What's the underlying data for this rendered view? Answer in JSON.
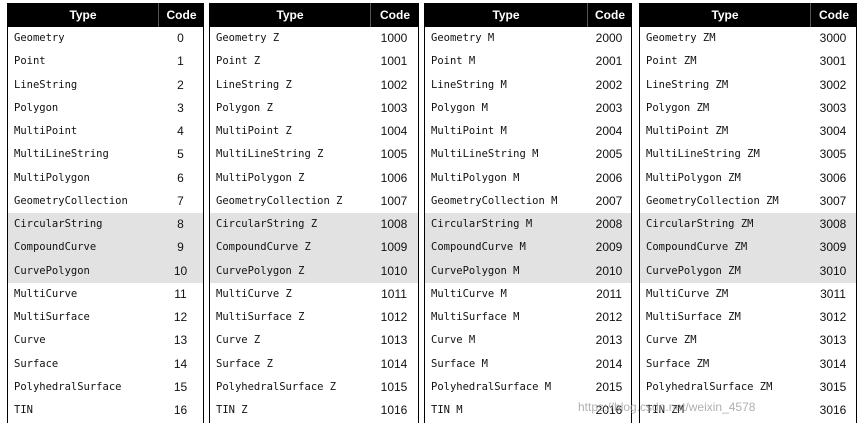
{
  "headers": {
    "type": "Type",
    "code": "Code"
  },
  "tables": [
    {
      "rows": [
        {
          "type": "Geometry",
          "code": "0"
        },
        {
          "type": "Point",
          "code": "1"
        },
        {
          "type": "LineString",
          "code": "2"
        },
        {
          "type": "Polygon",
          "code": "3"
        },
        {
          "type": "MultiPoint",
          "code": "4"
        },
        {
          "type": "MultiLineString",
          "code": "5"
        },
        {
          "type": "MultiPolygon",
          "code": "6"
        },
        {
          "type": "GeometryCollection",
          "code": "7"
        },
        {
          "type": "CircularString",
          "code": "8"
        },
        {
          "type": "CompoundCurve",
          "code": "9"
        },
        {
          "type": "CurvePolygon",
          "code": "10"
        },
        {
          "type": "MultiCurve",
          "code": "11"
        },
        {
          "type": "MultiSurface",
          "code": "12"
        },
        {
          "type": "Curve",
          "code": "13"
        },
        {
          "type": "Surface",
          "code": "14"
        },
        {
          "type": "PolyhedralSurface",
          "code": "15"
        },
        {
          "type": "TIN",
          "code": "16"
        }
      ]
    },
    {
      "rows": [
        {
          "type": "Geometry Z",
          "code": "1000"
        },
        {
          "type": "Point Z",
          "code": "1001"
        },
        {
          "type": "LineString Z",
          "code": "1002"
        },
        {
          "type": "Polygon Z",
          "code": "1003"
        },
        {
          "type": "MultiPoint Z",
          "code": "1004"
        },
        {
          "type": "MultiLineString Z",
          "code": "1005"
        },
        {
          "type": "MultiPolygon Z",
          "code": "1006"
        },
        {
          "type": "GeometryCollection Z",
          "code": "1007"
        },
        {
          "type": "CircularString Z",
          "code": "1008"
        },
        {
          "type": "CompoundCurve Z",
          "code": "1009"
        },
        {
          "type": "CurvePolygon Z",
          "code": "1010"
        },
        {
          "type": "MultiCurve Z",
          "code": "1011"
        },
        {
          "type": "MultiSurface Z",
          "code": "1012"
        },
        {
          "type": "Curve Z",
          "code": "1013"
        },
        {
          "type": "Surface Z",
          "code": "1014"
        },
        {
          "type": "PolyhedralSurface Z",
          "code": "1015"
        },
        {
          "type": "TIN Z",
          "code": "1016"
        }
      ]
    },
    {
      "rows": [
        {
          "type": "Geometry M",
          "code": "2000"
        },
        {
          "type": "Point M",
          "code": "2001"
        },
        {
          "type": "LineString M",
          "code": "2002"
        },
        {
          "type": "Polygon M",
          "code": "2003"
        },
        {
          "type": "MultiPoint M",
          "code": "2004"
        },
        {
          "type": "MultiLineString M",
          "code": "2005"
        },
        {
          "type": "MultiPolygon M",
          "code": "2006"
        },
        {
          "type": "GeometryCollection M",
          "code": "2007"
        },
        {
          "type": "CircularString M",
          "code": "2008"
        },
        {
          "type": "CompoundCurve M",
          "code": "2009"
        },
        {
          "type": "CurvePolygon M",
          "code": "2010"
        },
        {
          "type": "MultiCurve M",
          "code": "2011"
        },
        {
          "type": "MultiSurface M",
          "code": "2012"
        },
        {
          "type": "Curve M",
          "code": "2013"
        },
        {
          "type": "Surface M",
          "code": "2014"
        },
        {
          "type": "PolyhedralSurface M",
          "code": "2015"
        },
        {
          "type": "TIN M",
          "code": "2016"
        }
      ]
    },
    {
      "rows": [
        {
          "type": "Geometry ZM",
          "code": "3000"
        },
        {
          "type": "Point ZM",
          "code": "3001"
        },
        {
          "type": "LineString ZM",
          "code": "3002"
        },
        {
          "type": "Polygon ZM",
          "code": "3003"
        },
        {
          "type": "MultiPoint ZM",
          "code": "3004"
        },
        {
          "type": "MultiLineString ZM",
          "code": "3005"
        },
        {
          "type": "MultiPolygon ZM",
          "code": "3006"
        },
        {
          "type": "GeometryCollection ZM",
          "code": "3007"
        },
        {
          "type": "CircularString ZM",
          "code": "3008"
        },
        {
          "type": "CompoundCurve ZM",
          "code": "3009"
        },
        {
          "type": "CurvePolygon ZM",
          "code": "3010"
        },
        {
          "type": "MultiCurve ZM",
          "code": "3011"
        },
        {
          "type": "MultiSurface ZM",
          "code": "3012"
        },
        {
          "type": "Curve ZM",
          "code": "3013"
        },
        {
          "type": "Surface ZM",
          "code": "3014"
        },
        {
          "type": "PolyhedralSurface ZM",
          "code": "3015"
        },
        {
          "type": "TIN ZM",
          "code": "3016"
        }
      ]
    }
  ],
  "watermark": "https://blog.csdn.net/weixin_4578"
}
